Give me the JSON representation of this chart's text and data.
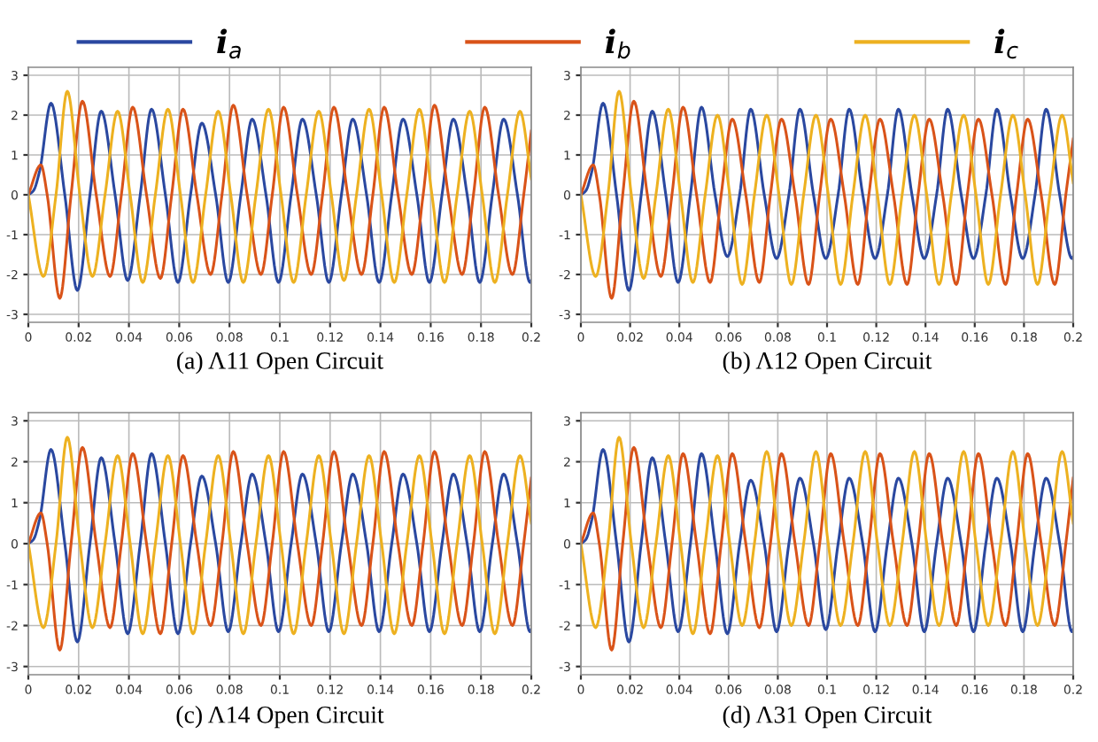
{
  "chart_data": [
    {
      "type": "line",
      "title": "(a) Λ11 Open Circuit",
      "xlim": [
        0,
        0.2
      ],
      "ylim": [
        -3.2,
        3.2
      ],
      "xticks": [
        0,
        0.02,
        0.04,
        0.06,
        0.08,
        0.1,
        0.12,
        0.14,
        0.16,
        0.18,
        0.2
      ],
      "yticks": [
        -3,
        -2,
        -1,
        0,
        1,
        2,
        3
      ],
      "grid": true,
      "legend": "top",
      "line_style": "solid",
      "marker": "none",
      "series": [
        {
          "name": "i$_{a}$",
          "color": "#2a48a0",
          "x": [
            0,
            0.002,
            0.0045,
            0.009,
            0.0145,
            0.0195,
            0.0245,
            0.029,
            0.0345,
            0.0395,
            0.0445,
            0.049,
            0.0545,
            0.0595,
            0.0645,
            0.069,
            0.0745,
            0.0795,
            0.0845,
            0.089,
            0.0945,
            0.0995,
            0.1045,
            0.109,
            0.1145,
            0.1195,
            0.1245,
            0.129,
            0.1345,
            0.1395,
            0.1445,
            0.149,
            0.1545,
            0.1595,
            0.1645,
            0.169,
            0.1745,
            0.1795,
            0.1845,
            0.189,
            0.1945,
            0.1995,
            0.2
          ],
          "values": [
            0,
            0.1,
            0.6,
            2.3,
            0,
            -2.4,
            0,
            2.1,
            0,
            -2.15,
            0,
            2.15,
            0,
            -2.2,
            0,
            1.8,
            0,
            -2.2,
            0,
            1.9,
            0,
            -2.2,
            0,
            1.9,
            0,
            -2.2,
            0,
            1.9,
            0,
            -2.2,
            0,
            1.9,
            0,
            -2.2,
            0,
            1.9,
            0,
            -2.2,
            0,
            1.9,
            0,
            -2.2,
            -2.15
          ]
        },
        {
          "name": "i$_{b}$",
          "color": "#d95319",
          "x": [
            0,
            0.005,
            0.0075,
            0.0125,
            0.017,
            0.0215,
            0.027,
            0.0325,
            0.037,
            0.0415,
            0.047,
            0.0525,
            0.057,
            0.0615,
            0.067,
            0.0725,
            0.077,
            0.0815,
            0.087,
            0.0925,
            0.097,
            0.1015,
            0.107,
            0.1125,
            0.117,
            0.1215,
            0.127,
            0.1325,
            0.137,
            0.1415,
            0.147,
            0.1525,
            0.157,
            0.1615,
            0.167,
            0.1725,
            0.177,
            0.1815,
            0.187,
            0.1925,
            0.197,
            0.2
          ],
          "values": [
            0,
            0.75,
            0,
            -2.6,
            0,
            2.35,
            0,
            -2.05,
            0,
            2.2,
            0,
            -2.1,
            0,
            2.15,
            0,
            -2.0,
            0,
            2.25,
            0,
            -2.0,
            0,
            2.2,
            0,
            -2.0,
            0,
            2.2,
            0,
            -2.0,
            0,
            2.2,
            0,
            -2.0,
            0,
            2.25,
            0,
            -2.0,
            0,
            2.2,
            0,
            -2.0,
            0,
            1.6
          ]
        },
        {
          "name": "i$_{c}$",
          "color": "#edb120",
          "x": [
            0,
            0.006,
            0.011,
            0.0155,
            0.0205,
            0.0255,
            0.0305,
            0.0355,
            0.0405,
            0.0455,
            0.0505,
            0.0555,
            0.0605,
            0.0655,
            0.0705,
            0.0755,
            0.0805,
            0.0855,
            0.0905,
            0.0955,
            0.1005,
            0.1055,
            0.1105,
            0.1155,
            0.1205,
            0.1255,
            0.1305,
            0.1355,
            0.1405,
            0.1455,
            0.1505,
            0.1555,
            0.1605,
            0.1655,
            0.1705,
            0.1755,
            0.1805,
            0.1855,
            0.1905,
            0.1955,
            0.2
          ],
          "values": [
            0,
            -2.05,
            0,
            2.6,
            0,
            -2.05,
            0,
            2.1,
            0,
            -2.2,
            0,
            2.15,
            0,
            -2.2,
            0,
            2.1,
            0,
            -2.2,
            0,
            2.15,
            0,
            -2.2,
            0,
            2.1,
            0,
            -2.15,
            0,
            2.15,
            0,
            -2.2,
            0,
            2.15,
            0,
            -2.2,
            0,
            2.1,
            0,
            -2.2,
            0,
            2.1,
            0.4
          ]
        }
      ]
    },
    {
      "type": "line",
      "title": "(b) Λ12 Open Circuit",
      "xlim": [
        0,
        0.2
      ],
      "ylim": [
        -3.2,
        3.2
      ],
      "xticks": [
        0,
        0.02,
        0.04,
        0.06,
        0.08,
        0.1,
        0.12,
        0.14,
        0.16,
        0.18,
        0.2
      ],
      "yticks": [
        -3,
        -2,
        -1,
        0,
        1,
        2,
        3
      ],
      "grid": true,
      "line_style": "solid",
      "marker": "none",
      "series": [
        {
          "color": "#2a48a0",
          "x": [
            0,
            0.002,
            0.0045,
            0.009,
            0.0145,
            0.0195,
            0.0245,
            0.029,
            0.0345,
            0.0395,
            0.0445,
            0.049,
            0.0545,
            0.0595,
            0.0645,
            0.069,
            0.0745,
            0.0795,
            0.0845,
            0.089,
            0.0945,
            0.0995,
            0.1045,
            0.109,
            0.1145,
            0.1195,
            0.1245,
            0.129,
            0.1345,
            0.1395,
            0.1445,
            0.149,
            0.1545,
            0.1595,
            0.1645,
            0.169,
            0.1745,
            0.1795,
            0.1845,
            0.189,
            0.1945,
            0.1995,
            0.2
          ],
          "values": [
            0,
            0.1,
            0.6,
            2.3,
            0,
            -2.4,
            0,
            2.1,
            0,
            -2.2,
            0,
            2.2,
            0,
            -1.55,
            0,
            2.15,
            0,
            -1.6,
            0,
            2.15,
            0,
            -1.6,
            0,
            2.15,
            0,
            -1.6,
            0,
            2.15,
            0,
            -1.6,
            0,
            2.15,
            0,
            -1.6,
            0,
            2.15,
            0,
            -1.6,
            0,
            2.15,
            0,
            -1.6,
            -1.55
          ]
        },
        {
          "color": "#d95319",
          "x": [
            0,
            0.005,
            0.0075,
            0.0125,
            0.017,
            0.0215,
            0.027,
            0.0325,
            0.037,
            0.0415,
            0.047,
            0.0525,
            0.057,
            0.0615,
            0.067,
            0.0725,
            0.077,
            0.0815,
            0.087,
            0.0925,
            0.097,
            0.1015,
            0.107,
            0.1125,
            0.117,
            0.1215,
            0.127,
            0.1325,
            0.137,
            0.1415,
            0.147,
            0.1525,
            0.157,
            0.1615,
            0.167,
            0.1725,
            0.177,
            0.1815,
            0.187,
            0.1925,
            0.197,
            0.2
          ],
          "values": [
            0,
            0.75,
            0,
            -2.6,
            0,
            2.35,
            0,
            -2.05,
            0,
            2.2,
            0,
            -2.2,
            0,
            1.9,
            0,
            -2.2,
            0,
            1.9,
            0,
            -2.25,
            0,
            1.9,
            0,
            -2.25,
            0,
            1.9,
            0,
            -2.25,
            0,
            1.9,
            0,
            -2.25,
            0,
            1.9,
            0,
            -2.25,
            0,
            1.9,
            0,
            -2.25,
            0,
            1.4
          ]
        },
        {
          "color": "#edb120",
          "x": [
            0,
            0.006,
            0.011,
            0.0155,
            0.0205,
            0.0255,
            0.0305,
            0.0355,
            0.0405,
            0.0455,
            0.0505,
            0.0555,
            0.0605,
            0.0655,
            0.0705,
            0.0755,
            0.0805,
            0.0855,
            0.0905,
            0.0955,
            0.1005,
            0.1055,
            0.1105,
            0.1155,
            0.1205,
            0.1255,
            0.1305,
            0.1355,
            0.1405,
            0.1455,
            0.1505,
            0.1555,
            0.1605,
            0.1655,
            0.1705,
            0.1755,
            0.1805,
            0.1855,
            0.1905,
            0.1955,
            0.2
          ],
          "values": [
            0,
            -2.05,
            0,
            2.6,
            0,
            -2.1,
            0,
            2.15,
            0,
            -2.2,
            0,
            2.0,
            0,
            -2.25,
            0,
            2.0,
            0,
            -2.25,
            0,
            2.0,
            0,
            -2.25,
            0,
            2.0,
            0,
            -2.25,
            0,
            2.0,
            0,
            -2.25,
            0,
            2.0,
            0,
            -2.25,
            0,
            2.0,
            0,
            -2.25,
            0,
            2.0,
            0.3
          ]
        }
      ]
    },
    {
      "type": "line",
      "title": "(c) Λ14 Open Circuit",
      "xlim": [
        0,
        0.2
      ],
      "ylim": [
        -3.2,
        3.2
      ],
      "xticks": [
        0,
        0.02,
        0.04,
        0.06,
        0.08,
        0.1,
        0.12,
        0.14,
        0.16,
        0.18,
        0.2
      ],
      "yticks": [
        -3,
        -2,
        -1,
        0,
        1,
        2,
        3
      ],
      "grid": true,
      "line_style": "solid",
      "marker": "none",
      "series": [
        {
          "color": "#2a48a0",
          "x": [
            0,
            0.002,
            0.0045,
            0.009,
            0.0145,
            0.0195,
            0.0245,
            0.029,
            0.0345,
            0.0395,
            0.0445,
            0.049,
            0.0545,
            0.0595,
            0.0645,
            0.069,
            0.0745,
            0.0795,
            0.0845,
            0.089,
            0.0945,
            0.0995,
            0.1045,
            0.109,
            0.1145,
            0.1195,
            0.1245,
            0.129,
            0.1345,
            0.1395,
            0.1445,
            0.149,
            0.1545,
            0.1595,
            0.1645,
            0.169,
            0.1745,
            0.1795,
            0.1845,
            0.189,
            0.1945,
            0.1995,
            0.2
          ],
          "values": [
            0,
            0.1,
            0.6,
            2.3,
            0,
            -2.4,
            0,
            2.1,
            0,
            -2.2,
            0,
            2.2,
            0,
            -2.2,
            0,
            1.65,
            0,
            -2.15,
            0,
            1.7,
            0,
            -2.15,
            0,
            1.7,
            0,
            -2.15,
            0,
            1.7,
            0,
            -2.15,
            0,
            1.7,
            0,
            -2.15,
            0,
            1.7,
            0,
            -2.15,
            0,
            1.7,
            0,
            -2.15,
            -2.1
          ]
        },
        {
          "color": "#d95319",
          "x": [
            0,
            0.005,
            0.0075,
            0.0125,
            0.017,
            0.0215,
            0.027,
            0.0325,
            0.037,
            0.0415,
            0.047,
            0.0525,
            0.057,
            0.0615,
            0.067,
            0.0725,
            0.077,
            0.0815,
            0.087,
            0.0925,
            0.097,
            0.1015,
            0.107,
            0.1125,
            0.117,
            0.1215,
            0.127,
            0.1325,
            0.137,
            0.1415,
            0.147,
            0.1525,
            0.157,
            0.1615,
            0.167,
            0.1725,
            0.177,
            0.1815,
            0.187,
            0.1925,
            0.197,
            0.2
          ],
          "values": [
            0,
            0.75,
            0,
            -2.6,
            0,
            2.35,
            0,
            -2.05,
            0,
            2.2,
            0,
            -2.2,
            0,
            2.15,
            0,
            -2.0,
            0,
            2.25,
            0,
            -2.0,
            0,
            2.25,
            0,
            -2.0,
            0,
            2.25,
            0,
            -2.0,
            0,
            2.25,
            0,
            -2.0,
            0,
            2.25,
            0,
            -2.0,
            0,
            2.25,
            0,
            -2.0,
            0,
            1.6
          ]
        },
        {
          "color": "#edb120",
          "x": [
            0,
            0.006,
            0.011,
            0.0155,
            0.0205,
            0.0255,
            0.0305,
            0.0355,
            0.0405,
            0.0455,
            0.0505,
            0.0555,
            0.0605,
            0.0655,
            0.0705,
            0.0755,
            0.0805,
            0.0855,
            0.0905,
            0.0955,
            0.1005,
            0.1055,
            0.1105,
            0.1155,
            0.1205,
            0.1255,
            0.1305,
            0.1355,
            0.1405,
            0.1455,
            0.1505,
            0.1555,
            0.1605,
            0.1655,
            0.1705,
            0.1755,
            0.1805,
            0.1855,
            0.1905,
            0.1955,
            0.2
          ],
          "values": [
            0,
            -2.05,
            0,
            2.6,
            0,
            -2.05,
            0,
            2.15,
            0,
            -2.2,
            0,
            2.15,
            0,
            -2.2,
            0,
            2.15,
            0,
            -2.2,
            0,
            2.15,
            0,
            -2.2,
            0,
            2.15,
            0,
            -2.2,
            0,
            2.15,
            0,
            -2.2,
            0,
            2.15,
            0,
            -2.2,
            0,
            2.15,
            0,
            -2.2,
            0,
            2.15,
            0.5
          ]
        }
      ]
    },
    {
      "type": "line",
      "title": "(d) Λ31 Open Circuit",
      "xlim": [
        0,
        0.2
      ],
      "ylim": [
        -3.2,
        3.2
      ],
      "xticks": [
        0,
        0.02,
        0.04,
        0.06,
        0.08,
        0.1,
        0.12,
        0.14,
        0.16,
        0.18,
        0.2
      ],
      "yticks": [
        -3,
        -2,
        -1,
        0,
        1,
        2,
        3
      ],
      "grid": true,
      "line_style": "solid",
      "marker": "none",
      "series": [
        {
          "color": "#2a48a0",
          "x": [
            0,
            0.002,
            0.0045,
            0.009,
            0.0145,
            0.0195,
            0.0245,
            0.029,
            0.0345,
            0.0395,
            0.0445,
            0.049,
            0.0545,
            0.0595,
            0.0645,
            0.069,
            0.0745,
            0.0795,
            0.0845,
            0.089,
            0.0945,
            0.0995,
            0.1045,
            0.109,
            0.1145,
            0.1195,
            0.1245,
            0.129,
            0.1345,
            0.1395,
            0.1445,
            0.149,
            0.1545,
            0.1595,
            0.1645,
            0.169,
            0.1745,
            0.1795,
            0.1845,
            0.189,
            0.1945,
            0.1995,
            0.2
          ],
          "values": [
            0,
            0.1,
            0.6,
            2.3,
            0,
            -2.4,
            0,
            2.1,
            0,
            -2.15,
            0,
            2.2,
            0,
            -2.2,
            0,
            1.55,
            0,
            -2.15,
            0,
            1.6,
            0,
            -2.1,
            0,
            1.6,
            0,
            -2.15,
            0,
            1.6,
            0,
            -2.15,
            0,
            1.6,
            0,
            -2.15,
            0,
            1.6,
            0,
            -2.15,
            0,
            1.6,
            0,
            -2.15,
            -2.1
          ]
        },
        {
          "color": "#d95319",
          "x": [
            0,
            0.005,
            0.0075,
            0.0125,
            0.017,
            0.0215,
            0.027,
            0.0325,
            0.037,
            0.0415,
            0.047,
            0.0525,
            0.057,
            0.0615,
            0.067,
            0.0725,
            0.077,
            0.0815,
            0.087,
            0.0925,
            0.097,
            0.1015,
            0.107,
            0.1125,
            0.117,
            0.1215,
            0.127,
            0.1325,
            0.137,
            0.1415,
            0.147,
            0.1525,
            0.157,
            0.1615,
            0.167,
            0.1725,
            0.177,
            0.1815,
            0.187,
            0.1925,
            0.197,
            0.2
          ],
          "values": [
            0,
            0.75,
            0,
            -2.6,
            0,
            2.35,
            0,
            -2.05,
            0,
            2.2,
            0,
            -2.2,
            0,
            2.2,
            0,
            -2.05,
            0,
            2.2,
            0,
            -2.0,
            0,
            2.2,
            0,
            -2.0,
            0,
            2.2,
            0,
            -2.0,
            0,
            2.2,
            0,
            -2.0,
            0,
            2.2,
            0,
            -2.0,
            0,
            2.2,
            0,
            -2.0,
            0,
            1.6
          ]
        },
        {
          "color": "#edb120",
          "x": [
            0,
            0.006,
            0.011,
            0.0155,
            0.0205,
            0.0255,
            0.0305,
            0.0355,
            0.0405,
            0.0455,
            0.0505,
            0.0555,
            0.0605,
            0.0655,
            0.0705,
            0.0755,
            0.0805,
            0.0855,
            0.0905,
            0.0955,
            0.1005,
            0.1055,
            0.1105,
            0.1155,
            0.1205,
            0.1255,
            0.1305,
            0.1355,
            0.1405,
            0.1455,
            0.1505,
            0.1555,
            0.1605,
            0.1655,
            0.1705,
            0.1755,
            0.1805,
            0.1855,
            0.1905,
            0.1955,
            0.2
          ],
          "values": [
            0,
            -2.05,
            0,
            2.6,
            0,
            -2.05,
            0,
            2.15,
            0,
            -2.2,
            0,
            2.15,
            0,
            -2.0,
            0,
            2.25,
            0,
            -2.0,
            0,
            2.25,
            0,
            -2.0,
            0,
            2.25,
            0,
            -2.0,
            0,
            2.25,
            0,
            -2.0,
            0,
            2.25,
            0,
            -2.0,
            0,
            2.25,
            0,
            -2.0,
            0,
            2.25,
            0.5
          ]
        }
      ]
    }
  ]
}
